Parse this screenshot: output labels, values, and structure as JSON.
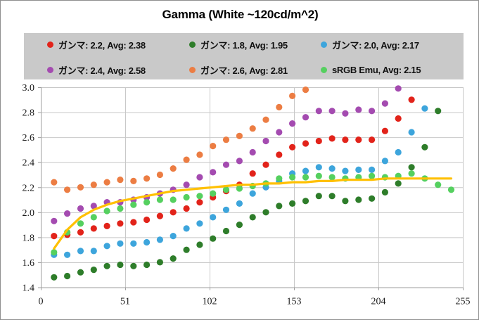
{
  "window": {
    "background": "#ffffff",
    "border_color": "#8f8f8f"
  },
  "chart_data": {
    "type": "scatter",
    "title": "Gamma (White ~120cd/m^2)",
    "x_axis": {
      "min": 0,
      "max": 255,
      "tick_labels": [
        "0",
        "51",
        "102",
        "153",
        "204",
        "255"
      ],
      "ticks": [
        0,
        51,
        102,
        153,
        204,
        255
      ]
    },
    "y_axis": {
      "min": 1.4,
      "max": 3.0,
      "tick_labels": [
        "1.4",
        "1.6",
        "1.8",
        "2.0",
        "2.2",
        "2.4",
        "2.6",
        "2.8",
        "3.0"
      ],
      "ticks": [
        1.4,
        1.6,
        1.8,
        2.0,
        2.2,
        2.4,
        2.6,
        2.8,
        3.0
      ]
    },
    "grid": true,
    "legend_position": "top",
    "legend_background": "#c9c9c9",
    "x_start": 8,
    "x_step": 8,
    "series": [
      {
        "label": "ガンマ: 2.2, Avg: 2.38",
        "type": "scatter",
        "color": "#e2231a",
        "values": [
          1.81,
          1.82,
          1.84,
          1.87,
          1.89,
          1.91,
          1.92,
          1.94,
          1.97,
          2.0,
          2.03,
          2.08,
          2.12,
          2.17,
          2.22,
          2.31,
          2.38,
          2.46,
          2.52,
          2.55,
          2.57,
          2.59,
          2.58,
          2.58,
          2.58,
          2.65,
          2.75,
          2.9
        ]
      },
      {
        "label": "ガンマ: 1.8, Avg: 1.95",
        "type": "scatter",
        "color": "#2e7d2a",
        "values": [
          1.48,
          1.49,
          1.52,
          1.54,
          1.57,
          1.58,
          1.57,
          1.58,
          1.6,
          1.63,
          1.7,
          1.74,
          1.79,
          1.85,
          1.9,
          1.96,
          2.0,
          2.05,
          2.07,
          2.09,
          2.13,
          2.13,
          2.09,
          2.1,
          2.11,
          2.16,
          2.23,
          2.36,
          2.52,
          2.81
        ]
      },
      {
        "label": "ガンマ: 2.0, Avg: 2.17",
        "type": "scatter",
        "color": "#3da5dc",
        "values": [
          1.66,
          1.66,
          1.69,
          1.69,
          1.73,
          1.75,
          1.75,
          1.76,
          1.78,
          1.81,
          1.87,
          1.91,
          1.96,
          2.02,
          2.07,
          2.15,
          2.2,
          2.25,
          2.31,
          2.33,
          2.36,
          2.35,
          2.33,
          2.34,
          2.34,
          2.41,
          2.48,
          2.64,
          2.83
        ]
      },
      {
        "label": "ガンマ: 2.4, Avg: 2.58",
        "type": "scatter",
        "color": "#a44bb0",
        "values": [
          1.93,
          1.99,
          2.03,
          2.05,
          2.08,
          2.08,
          2.1,
          2.12,
          2.15,
          2.18,
          2.22,
          2.28,
          2.32,
          2.38,
          2.41,
          2.48,
          2.57,
          2.64,
          2.71,
          2.76,
          2.81,
          2.81,
          2.79,
          2.82,
          2.81,
          2.87,
          2.99
        ]
      },
      {
        "label": "ガンマ: 2.6, Avg: 2.81",
        "type": "scatter",
        "color": "#ec7d43",
        "values": [
          2.24,
          2.18,
          2.2,
          2.22,
          2.24,
          2.26,
          2.25,
          2.27,
          2.3,
          2.35,
          2.42,
          2.46,
          2.53,
          2.58,
          2.61,
          2.67,
          2.74,
          2.84,
          2.93,
          2.98
        ]
      },
      {
        "label": "sRGB Emu, Avg: 2.15",
        "type": "scatter",
        "color": "#55d05f",
        "values": [
          1.68,
          1.84,
          1.91,
          1.96,
          2.01,
          2.03,
          2.06,
          2.08,
          2.1,
          2.1,
          2.12,
          2.13,
          2.15,
          2.18,
          2.19,
          2.21,
          2.23,
          2.27,
          2.28,
          2.28,
          2.29,
          2.28,
          2.27,
          2.28,
          2.29,
          2.28,
          2.29,
          2.31,
          2.27,
          2.22,
          2.18
        ]
      },
      {
        "label": "target-gamma-curve",
        "type": "line",
        "in_legend": false,
        "color": "#ffc000",
        "values": [
          1.71,
          1.86,
          1.96,
          2.02,
          2.06,
          2.09,
          2.11,
          2.13,
          2.15,
          2.17,
          2.18,
          2.19,
          2.2,
          2.21,
          2.22,
          2.22,
          2.23,
          2.23,
          2.24,
          2.24,
          2.25,
          2.25,
          2.26,
          2.26,
          2.26,
          2.27,
          2.27,
          2.27,
          2.27,
          2.27,
          2.27
        ]
      }
    ],
    "style_colors": {
      "gridline": "#c8c8c8",
      "axis": "#9e9e9e",
      "tick_label": "#1a1a1a",
      "title": "#000000"
    }
  }
}
